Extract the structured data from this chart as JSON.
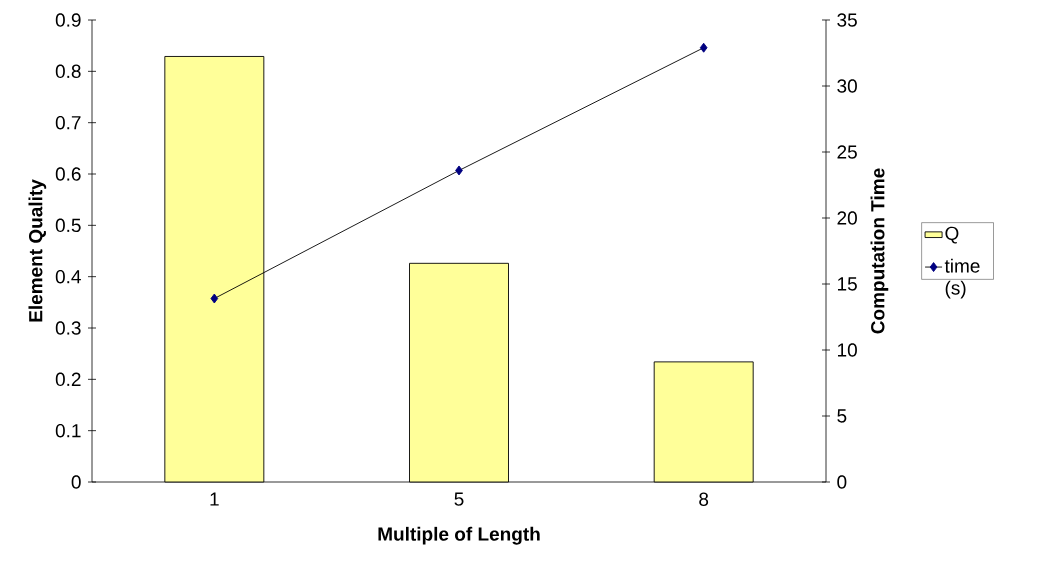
{
  "chart_data": {
    "type": "bar",
    "xlabel": "Multiple of Length",
    "ylabel": "Element Quality",
    "y2label": "Computation Time",
    "categories": [
      "1",
      "5",
      "8"
    ],
    "series": [
      {
        "name": "Q",
        "color": "#ffff99",
        "values": [
          0.829,
          0.426,
          0.234
        ]
      },
      {
        "name": "time (s)",
        "type": "line",
        "axis": "y2",
        "color": "#000080",
        "values": [
          13.9,
          23.6,
          32.9
        ]
      }
    ],
    "ylim": [
      0,
      0.9
    ],
    "yticks": [
      0,
      0.1,
      0.2,
      0.3,
      0.4,
      0.5,
      0.6,
      0.7,
      0.8,
      0.9
    ],
    "y2lim": [
      0,
      35
    ],
    "y2ticks": [
      0,
      5,
      10,
      15,
      20,
      25,
      30,
      35
    ],
    "legend": "right",
    "marker": "diamond",
    "line_style": "solid"
  }
}
